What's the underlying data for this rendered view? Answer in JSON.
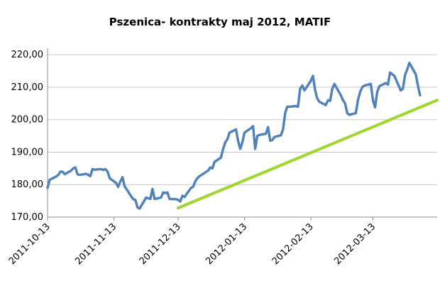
{
  "chart_data": {
    "type": "line",
    "title": "Pszenica- kontrakty maj 2012, MATIF",
    "xlabel": "",
    "ylabel": "",
    "ylim": [
      170,
      222
    ],
    "grid": true,
    "legend": "none",
    "y_ticks": [
      170,
      180,
      190,
      200,
      210,
      220
    ],
    "y_tick_labels": [
      "170,00",
      "180,00",
      "190,00",
      "200,00",
      "210,00",
      "220,00"
    ],
    "x_ticks": [
      "2011-10-13",
      "2011-11-13",
      "2011-12-13",
      "2012-01-13",
      "2012-02-13",
      "2012-03-13"
    ],
    "x_range": [
      "2011-10-13",
      "2012-04-12"
    ],
    "colors": {
      "price": "#4f81bd",
      "trend": "#9bd82a",
      "grid": "#c8c8c8"
    },
    "series": [
      {
        "kind": "price",
        "points": [
          [
            "2011-10-13",
            179.0
          ],
          [
            "2011-10-14",
            181.5
          ],
          [
            "2011-10-17",
            182.5
          ],
          [
            "2011-10-18",
            183.0
          ],
          [
            "2011-10-19",
            184.0
          ],
          [
            "2011-10-20",
            184.0
          ],
          [
            "2011-10-21",
            183.2
          ],
          [
            "2011-10-24",
            184.3
          ],
          [
            "2011-10-25",
            185.0
          ],
          [
            "2011-10-26",
            185.3
          ],
          [
            "2011-10-27",
            183.2
          ],
          [
            "2011-10-28",
            183.0
          ],
          [
            "2011-10-31",
            183.3
          ],
          [
            "2011-11-01",
            183.0
          ],
          [
            "2011-11-02",
            182.6
          ],
          [
            "2011-11-03",
            184.8
          ],
          [
            "2011-11-04",
            184.6
          ],
          [
            "2011-11-07",
            184.8
          ],
          [
            "2011-11-08",
            184.5
          ],
          [
            "2011-11-09",
            184.8
          ],
          [
            "2011-11-10",
            184.0
          ],
          [
            "2011-11-11",
            182.0
          ],
          [
            "2011-11-14",
            180.5
          ],
          [
            "2011-11-15",
            179.3
          ],
          [
            "2011-11-16",
            181.0
          ],
          [
            "2011-11-17",
            182.3
          ],
          [
            "2011-11-18",
            179.5
          ],
          [
            "2011-11-21",
            176.5
          ],
          [
            "2011-11-22",
            175.5
          ],
          [
            "2011-11-23",
            175.3
          ],
          [
            "2011-11-24",
            173.0
          ],
          [
            "2011-11-25",
            172.6
          ],
          [
            "2011-11-28",
            176.0
          ],
          [
            "2011-11-29",
            175.8
          ],
          [
            "2011-11-30",
            175.6
          ],
          [
            "2011-12-01",
            178.7
          ],
          [
            "2011-12-02",
            175.6
          ],
          [
            "2011-12-05",
            176.0
          ],
          [
            "2011-12-06",
            177.6
          ],
          [
            "2011-12-07",
            177.4
          ],
          [
            "2011-12-08",
            177.6
          ],
          [
            "2011-12-09",
            175.6
          ],
          [
            "2011-12-12",
            175.5
          ],
          [
            "2011-12-13",
            175.3
          ],
          [
            "2011-12-14",
            174.8
          ],
          [
            "2011-12-15",
            176.6
          ],
          [
            "2011-12-16",
            176.2
          ],
          [
            "2011-12-19",
            179.0
          ],
          [
            "2011-12-20",
            179.3
          ],
          [
            "2011-12-21",
            181.0
          ],
          [
            "2011-12-22",
            182.0
          ],
          [
            "2011-12-23",
            182.6
          ],
          [
            "2011-12-27",
            184.3
          ],
          [
            "2011-12-28",
            185.3
          ],
          [
            "2011-12-29",
            185.0
          ],
          [
            "2011-12-30",
            187.0
          ],
          [
            "2012-01-02",
            188.3
          ],
          [
            "2012-01-03",
            191.0
          ],
          [
            "2012-01-04",
            193.0
          ],
          [
            "2012-01-05",
            194.0
          ],
          [
            "2012-01-06",
            196.0
          ],
          [
            "2012-01-09",
            197.0
          ],
          [
            "2012-01-10",
            193.5
          ],
          [
            "2012-01-11",
            191.0
          ],
          [
            "2012-01-12",
            193.0
          ],
          [
            "2012-01-13",
            196.0
          ],
          [
            "2012-01-16",
            197.4
          ],
          [
            "2012-01-17",
            198.0
          ],
          [
            "2012-01-18",
            191.0
          ],
          [
            "2012-01-19",
            195.0
          ],
          [
            "2012-01-20",
            195.3
          ],
          [
            "2012-01-23",
            195.7
          ],
          [
            "2012-01-24",
            197.7
          ],
          [
            "2012-01-25",
            193.5
          ],
          [
            "2012-01-26",
            193.7
          ],
          [
            "2012-01-27",
            194.7
          ],
          [
            "2012-01-30",
            195.2
          ],
          [
            "2012-01-31",
            197.0
          ],
          [
            "2012-02-01",
            202.0
          ],
          [
            "2012-02-02",
            204.0
          ],
          [
            "2012-02-03",
            204.0
          ],
          [
            "2012-02-06",
            204.2
          ],
          [
            "2012-02-07",
            204.0
          ],
          [
            "2012-02-08",
            209.5
          ],
          [
            "2012-02-09",
            210.5
          ],
          [
            "2012-02-10",
            209.0
          ],
          [
            "2012-02-13",
            212.0
          ],
          [
            "2012-02-14",
            213.5
          ],
          [
            "2012-02-15",
            209.0
          ],
          [
            "2012-02-16",
            206.5
          ],
          [
            "2012-02-17",
            205.5
          ],
          [
            "2012-02-20",
            204.5
          ],
          [
            "2012-02-21",
            206.0
          ],
          [
            "2012-02-22",
            205.8
          ],
          [
            "2012-02-23",
            209.5
          ],
          [
            "2012-02-24",
            211.0
          ],
          [
            "2012-02-27",
            207.5
          ],
          [
            "2012-02-28",
            206.0
          ],
          [
            "2012-02-29",
            205.0
          ],
          [
            "2012-03-01",
            202.0
          ],
          [
            "2012-03-02",
            201.5
          ],
          [
            "2012-03-05",
            202.0
          ],
          [
            "2012-03-06",
            206.0
          ],
          [
            "2012-03-07",
            208.5
          ],
          [
            "2012-03-08",
            210.0
          ],
          [
            "2012-03-09",
            210.5
          ],
          [
            "2012-03-12",
            211.0
          ],
          [
            "2012-03-13",
            206.0
          ],
          [
            "2012-03-14",
            203.8
          ],
          [
            "2012-03-15",
            208.5
          ],
          [
            "2012-03-16",
            210.3
          ],
          [
            "2012-03-19",
            211.3
          ],
          [
            "2012-03-20",
            210.8
          ],
          [
            "2012-03-21",
            214.5
          ],
          [
            "2012-03-22",
            214.0
          ],
          [
            "2012-03-23",
            213.5
          ],
          [
            "2012-03-26",
            209.0
          ],
          [
            "2012-03-27",
            209.5
          ],
          [
            "2012-03-28",
            213.8
          ],
          [
            "2012-03-29",
            215.5
          ],
          [
            "2012-03-30",
            217.5
          ],
          [
            "2012-04-02",
            214.0
          ],
          [
            "2012-04-03",
            210.5
          ],
          [
            "2012-04-04",
            207.5
          ]
        ]
      },
      {
        "kind": "trend",
        "points": [
          [
            "2011-12-13",
            172.8
          ],
          [
            "2012-04-12",
            206.0
          ]
        ]
      }
    ]
  }
}
